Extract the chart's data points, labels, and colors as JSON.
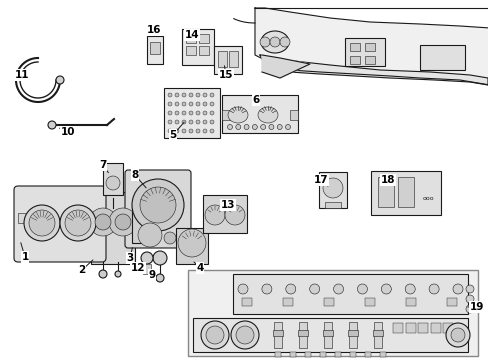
{
  "background_color": "#ffffff",
  "line_color": "#1a1a1a",
  "text_color": "#000000",
  "figsize": [
    4.89,
    3.6
  ],
  "dpi": 100,
  "label_fontsize": 7.5,
  "lw_main": 0.8,
  "lw_thin": 0.4,
  "component_fill": "#f5f5f5",
  "component_fill2": "#e8e8e8",
  "inset_fill": "#f0f0f0"
}
